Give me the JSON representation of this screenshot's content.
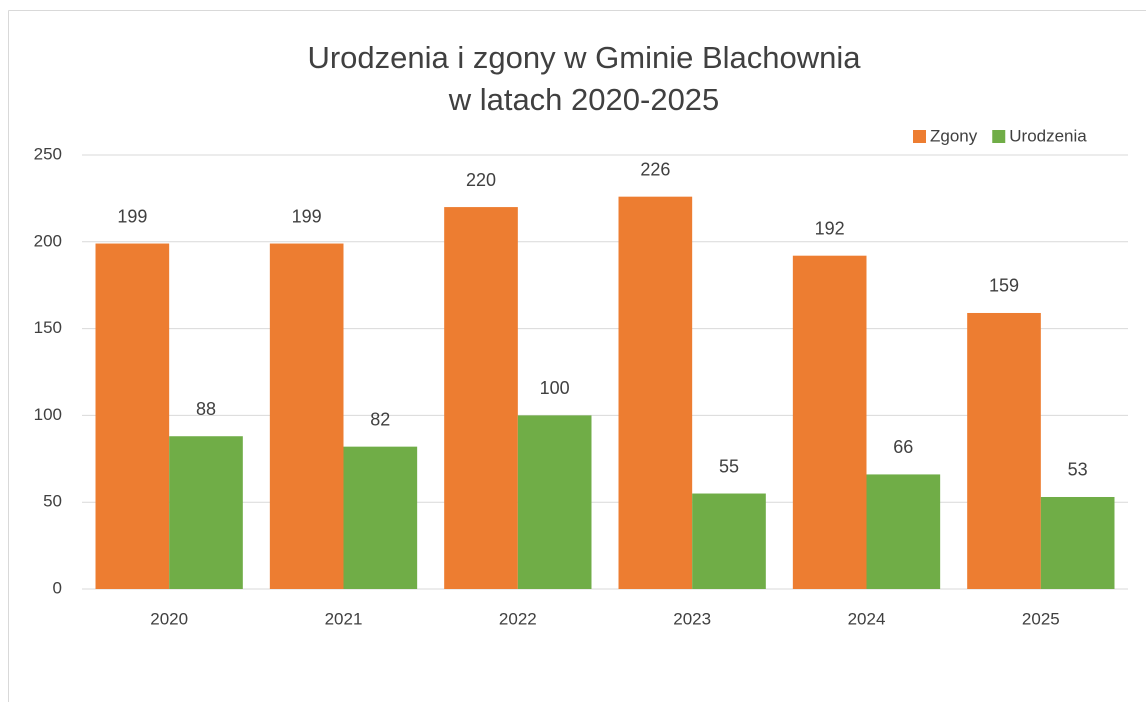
{
  "chart_data": {
    "type": "bar",
    "title": [
      "Urodzenia i zgony w Gminie Blachownia",
      "w latach 2020-2025"
    ],
    "categories": [
      "2020",
      "2021",
      "2022",
      "2023",
      "2024",
      "2025"
    ],
    "series": [
      {
        "name": "Zgony",
        "color": "#ed7d31",
        "values": [
          199,
          199,
          220,
          226,
          192,
          159
        ]
      },
      {
        "name": "Urodzenia",
        "color": "#70ad47",
        "values": [
          88,
          82,
          100,
          55,
          66,
          53
        ]
      }
    ],
    "ylim": [
      0,
      250
    ],
    "yticks": [
      0,
      50,
      100,
      150,
      200,
      250
    ],
    "grid": true,
    "legend": "top-right"
  }
}
